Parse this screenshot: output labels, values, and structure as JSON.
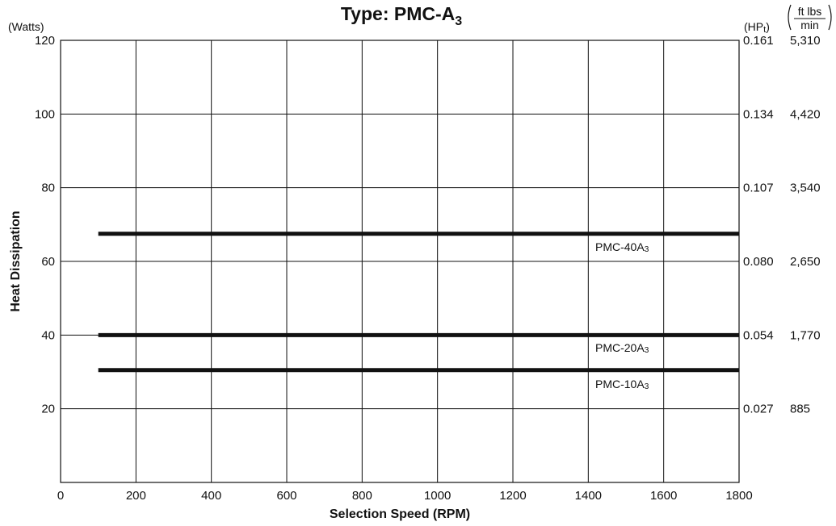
{
  "chart_data": {
    "type": "line",
    "title": "Type: PMC-A",
    "title_subscript": "3",
    "xlabel": "Selection Speed (RPM)",
    "ylabel": "Heat Dissipation",
    "y_unit": "(Watts)",
    "xlim": [
      0,
      1800
    ],
    "ylim": [
      0,
      120
    ],
    "x_ticks": [
      "0",
      "200",
      "400",
      "600",
      "800",
      "1000",
      "1200",
      "1400",
      "1600",
      "1800"
    ],
    "y_ticks": [
      "20",
      "40",
      "60",
      "80",
      "100",
      "120"
    ],
    "grid": true,
    "right_axes": [
      {
        "unit": "(HP",
        "unit_subscript": "t",
        "unit_suffix": ")",
        "ticks": [
          "0.027",
          "0.054",
          "0.080",
          "0.107",
          "0.134",
          "0.161"
        ]
      },
      {
        "unit_numerator": "ft lbs",
        "unit_denominator": "min",
        "ticks": [
          "885",
          "1,770",
          "2,650",
          "3,540",
          "4,420",
          "5,310"
        ]
      }
    ],
    "series": [
      {
        "name": "PMC-40A",
        "name_subscript": "3",
        "x": [
          100,
          1800
        ],
        "y": [
          67.5,
          67.5
        ]
      },
      {
        "name": "PMC-20A",
        "name_subscript": "3",
        "x": [
          100,
          1800
        ],
        "y": [
          40,
          40
        ]
      },
      {
        "name": "PMC-10A",
        "name_subscript": "3",
        "x": [
          100,
          1800
        ],
        "y": [
          30.5,
          30.5
        ]
      }
    ]
  }
}
